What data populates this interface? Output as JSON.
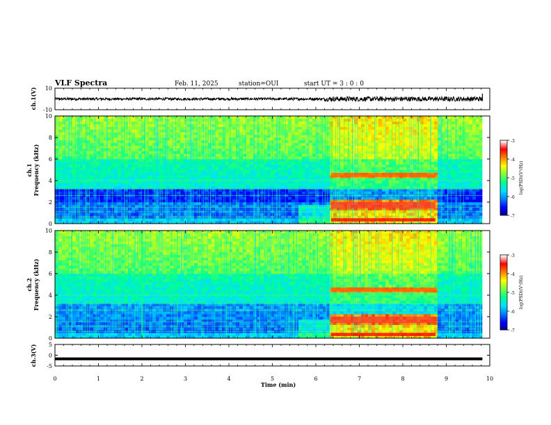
{
  "header": {
    "title": "VLF Spectra",
    "date": "Feb. 11, 2025",
    "station": "station=OUI",
    "start_ut": "start UT =  3 : 0  : 0"
  },
  "chart_data": [
    {
      "type": "line",
      "panel": "ch1-waveform",
      "ylabel": "ch.1(V)",
      "ylim": [
        -10,
        10
      ],
      "y_ticks": [
        "10",
        "-10"
      ],
      "x_range": [
        0,
        10
      ],
      "data_end": 9.83,
      "series": [
        {
          "values_description_free": true,
          "baseline": 0,
          "amplitude_before": [
            [
              0,
              1.2
            ],
            [
              6.2,
              1.2
            ]
          ],
          "amplitude_after": [
            [
              6.2,
              2.0
            ],
            [
              9.83,
              2.4
            ]
          ]
        }
      ]
    },
    {
      "type": "heatmap",
      "panel": "ch1-spectrogram",
      "ylabel": "ch.1\nFrequency (kHz)",
      "ylabel_line1": "ch.1",
      "ylabel_line2": "Frequency (kHz)",
      "ylim": [
        0,
        10
      ],
      "y_ticks": [
        "0",
        "2",
        "4",
        "6",
        "8",
        "10"
      ],
      "x_range": [
        0,
        10
      ],
      "colorbar": {
        "label": "log(PSD)(V²/Hz)",
        "ticks": [
          "-3",
          "-4",
          "-5",
          "-6",
          "-7"
        ],
        "range": [
          -7,
          -3
        ]
      }
    },
    {
      "type": "heatmap",
      "panel": "ch2-spectrogram",
      "ylabel": "ch.2\nFrequency (kHz)",
      "ylabel_line1": "ch.2",
      "ylabel_line2": "Frequency (kHz)",
      "ylim": [
        0,
        10
      ],
      "y_ticks": [
        "0",
        "2",
        "4",
        "6",
        "8",
        "10"
      ],
      "x_range": [
        0,
        10
      ],
      "colorbar": {
        "label": "log(PSD)(V²/Hz)",
        "ticks": [
          "-3",
          "-4",
          "-5",
          "-6",
          "-7"
        ],
        "range": [
          -7,
          -3
        ]
      }
    },
    {
      "type": "line",
      "panel": "ch3-waveform",
      "ylabel": "ch.3(V)",
      "ylim": [
        -5,
        5
      ],
      "y_ticks": [
        "5",
        "0",
        "-5"
      ],
      "x_range": [
        0,
        10
      ],
      "data_end": 9.83,
      "series": [
        {
          "baseline": -1.7
        }
      ]
    }
  ],
  "x_axis": {
    "label": "Time (min)",
    "ticks": [
      "0",
      "1",
      "2",
      "3",
      "4",
      "5",
      "6",
      "7",
      "8",
      "9",
      "10"
    ]
  },
  "colors": {
    "background": "#ffffff",
    "axis": "#000000",
    "colormap": [
      "#00008c",
      "#0000ff",
      "#0080ff",
      "#00e0ff",
      "#00ff90",
      "#80ff40",
      "#ffff00",
      "#ff8000",
      "#ff0000",
      "#ffffff"
    ]
  }
}
